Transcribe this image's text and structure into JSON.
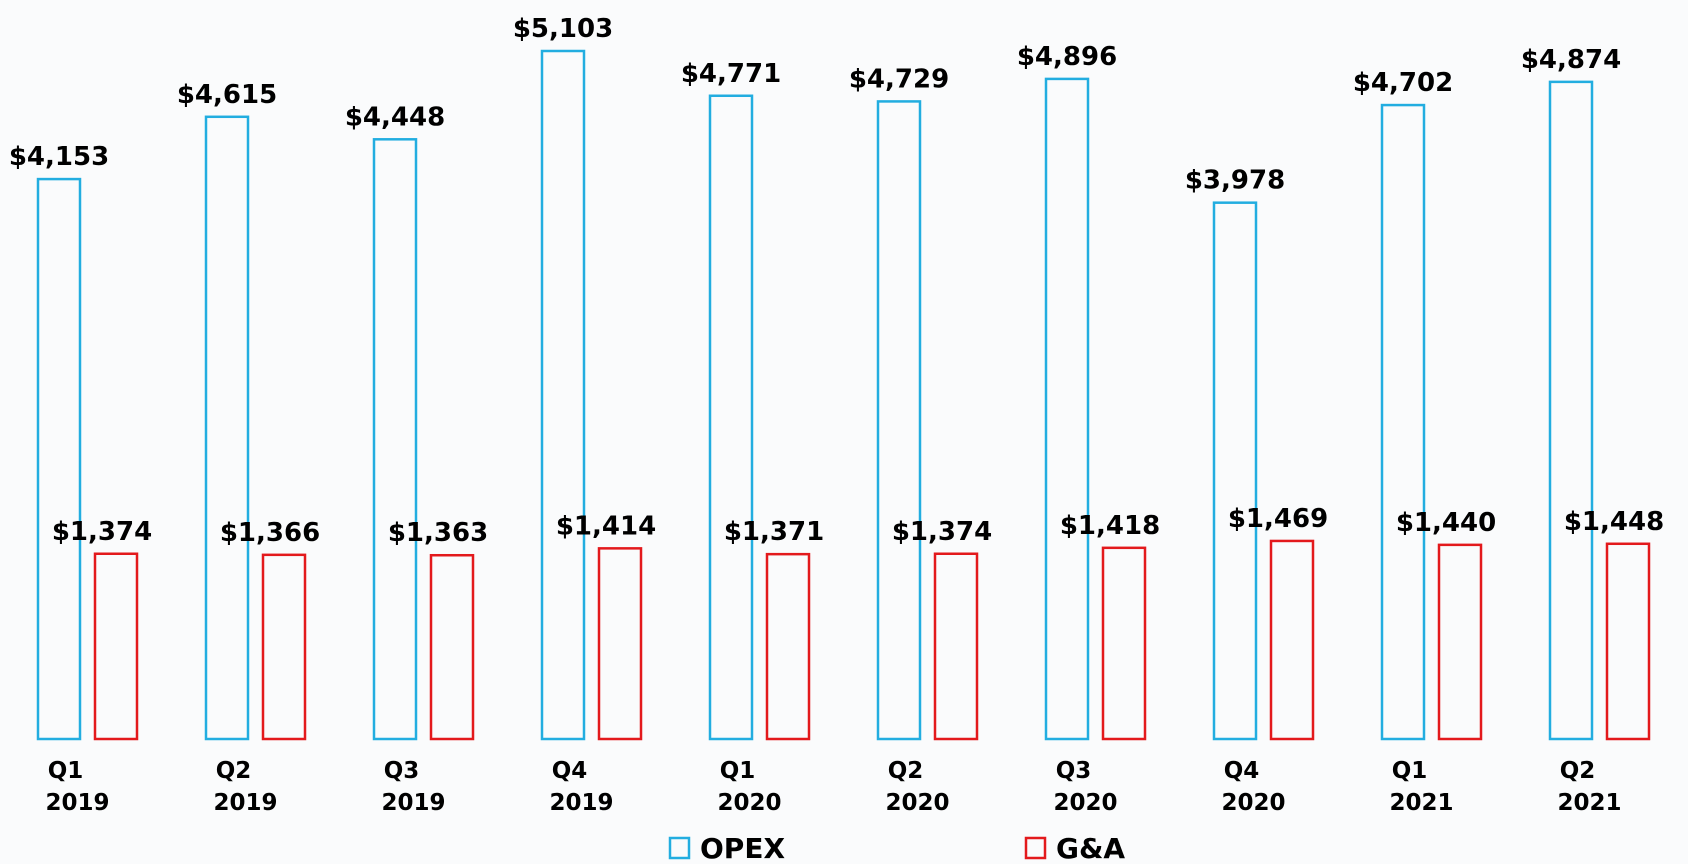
{
  "chart_data": {
    "type": "bar",
    "categories": [
      [
        "Q1",
        "2019"
      ],
      [
        "Q2",
        "2019"
      ],
      [
        "Q3",
        "2019"
      ],
      [
        "Q4",
        "2019"
      ],
      [
        "Q1",
        "2020"
      ],
      [
        "Q2",
        "2020"
      ],
      [
        "Q3",
        "2020"
      ],
      [
        "Q4",
        "2020"
      ],
      [
        "Q1",
        "2021"
      ],
      [
        "Q2",
        "2021"
      ]
    ],
    "series": [
      {
        "name": "OPEX",
        "color": "#22ade0",
        "values": [
          4153,
          4615,
          4448,
          5103,
          4771,
          4729,
          4896,
          3978,
          4702,
          4874
        ],
        "value_labels": [
          "$4,153",
          "$4,615",
          "$4,448",
          "$5,103",
          "$4,771",
          "$4,729",
          "$4,896",
          "$3,978",
          "$4,702",
          "$4,874"
        ]
      },
      {
        "name": "G&A",
        "color": "#e3191c",
        "values": [
          1374,
          1366,
          1363,
          1414,
          1371,
          1374,
          1418,
          1469,
          1440,
          1448
        ],
        "value_labels": [
          "$1,374",
          "$1,366",
          "$1,363",
          "$1,414",
          "$1,371",
          "$1,374",
          "$1,418",
          "$1,469",
          "$1,440",
          "$1,448"
        ]
      }
    ],
    "legend": "bottom"
  }
}
